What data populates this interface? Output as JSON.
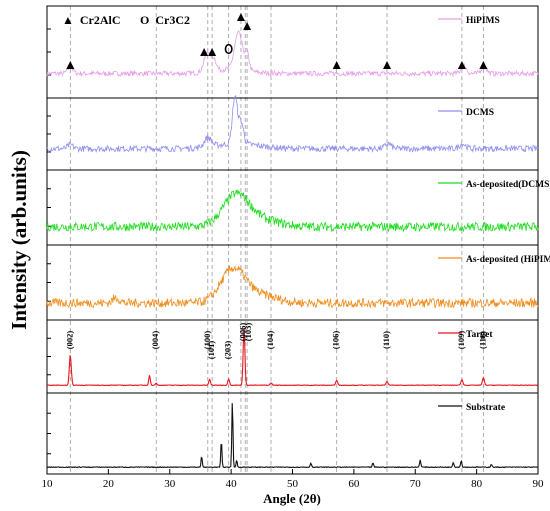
{
  "chart_data": {
    "type": "line",
    "xlabel": "Angle (2θ)",
    "ylabel": "Intensity (arb.units)",
    "xlim": [
      10,
      90
    ],
    "xticks": [
      10,
      20,
      30,
      40,
      50,
      60,
      70,
      80,
      90
    ],
    "legend_markers": {
      "triangle": "▲",
      "triangle_label": "Cr2AlC",
      "circle": "O",
      "circle_label": "Cr3C2"
    },
    "reference_lines_x": [
      13.8,
      27.8,
      36.2,
      36.9,
      39.6,
      41.6,
      42.3,
      42.6,
      46.5,
      57.2,
      65.4,
      77.6,
      81.1
    ],
    "triangle_marker_x": [
      13.8,
      35.6,
      36.9,
      41.6,
      42.6,
      57.2,
      65.4,
      77.6,
      81.1
    ],
    "circle_marker_x": [
      39.6
    ],
    "hkl_labels": [
      {
        "x": 13.8,
        "text": "(002)"
      },
      {
        "x": 27.8,
        "text": "(004)"
      },
      {
        "x": 36.2,
        "text": "(100)"
      },
      {
        "x": 36.9,
        "text": "(101)"
      },
      {
        "x": 39.6,
        "text": "(203)"
      },
      {
        "x": 42.0,
        "text": "(006)"
      },
      {
        "x": 42.9,
        "text": "(103)"
      },
      {
        "x": 46.5,
        "text": "(104)"
      },
      {
        "x": 57.2,
        "text": "(106)"
      },
      {
        "x": 65.4,
        "text": "(110)"
      },
      {
        "x": 77.6,
        "text": "(109)"
      },
      {
        "x": 81.1,
        "text": "(116)"
      }
    ],
    "series": [
      {
        "name": "HiPIMS",
        "color": "#e89ee8",
        "baseline": 0.25,
        "noise": 0.03,
        "peaks": [
          [
            13.8,
            0.08,
            0.6
          ],
          [
            36.2,
            0.25,
            0.8
          ],
          [
            37.3,
            0.12,
            0.5
          ],
          [
            41.2,
            0.45,
            0.9
          ],
          [
            42.6,
            0.2,
            0.5
          ],
          [
            77.9,
            0.1,
            0.6
          ],
          [
            81.2,
            0.09,
            0.6
          ]
        ],
        "humps": [
          [
            40,
            0.05,
            4
          ]
        ]
      },
      {
        "name": "DCMS",
        "color": "#8f8ff0",
        "baseline": 0.28,
        "noise": 0.05,
        "peaks": [
          [
            13.8,
            0.06,
            0.6
          ],
          [
            36.2,
            0.15,
            0.8
          ],
          [
            40.6,
            0.75,
            0.55
          ],
          [
            41.6,
            0.35,
            0.6
          ],
          [
            65.6,
            0.08,
            0.7
          ],
          [
            77.7,
            0.08,
            0.7
          ]
        ],
        "humps": [
          [
            41,
            0.08,
            5
          ]
        ]
      },
      {
        "name": "As-deposited(DCMS)",
        "color": "#1fdc1f",
        "baseline": 0.22,
        "noise": 0.07,
        "peaks": [],
        "humps": [
          [
            40.8,
            0.48,
            3.0
          ],
          [
            45,
            0.1,
            4
          ]
        ]
      },
      {
        "name": "As-deposited (HiPIMS)",
        "color": "#f08c1c",
        "baseline": 0.2,
        "noise": 0.07,
        "peaks": [
          [
            21.3,
            0.08,
            0.8
          ]
        ],
        "humps": [
          [
            40.3,
            0.5,
            2.8
          ],
          [
            44.5,
            0.12,
            4
          ]
        ]
      },
      {
        "name": "Target",
        "color": "#e8141c",
        "baseline": 0.06,
        "noise": 0.004,
        "peaks": [
          [
            13.8,
            0.48,
            0.22
          ],
          [
            26.7,
            0.16,
            0.18
          ],
          [
            27.8,
            0.03,
            0.2
          ],
          [
            36.5,
            0.09,
            0.2
          ],
          [
            39.6,
            0.1,
            0.2
          ],
          [
            42.1,
            0.9,
            0.2
          ],
          [
            46.5,
            0.04,
            0.2
          ],
          [
            57.2,
            0.08,
            0.22
          ],
          [
            65.4,
            0.06,
            0.22
          ],
          [
            77.6,
            0.09,
            0.22
          ],
          [
            81.1,
            0.12,
            0.22
          ]
        ],
        "humps": []
      },
      {
        "name": "Substrate",
        "color": "#111111",
        "baseline": 0.04,
        "noise": 0.005,
        "peaks": [
          [
            35.2,
            0.16,
            0.13
          ],
          [
            38.4,
            0.38,
            0.13
          ],
          [
            40.2,
            0.95,
            0.13
          ],
          [
            40.9,
            0.1,
            0.13
          ],
          [
            53.0,
            0.06,
            0.15
          ],
          [
            63.1,
            0.06,
            0.15
          ],
          [
            70.8,
            0.1,
            0.15
          ],
          [
            76.2,
            0.07,
            0.15
          ],
          [
            77.5,
            0.09,
            0.15
          ],
          [
            82.4,
            0.04,
            0.15
          ]
        ],
        "humps": []
      }
    ]
  }
}
